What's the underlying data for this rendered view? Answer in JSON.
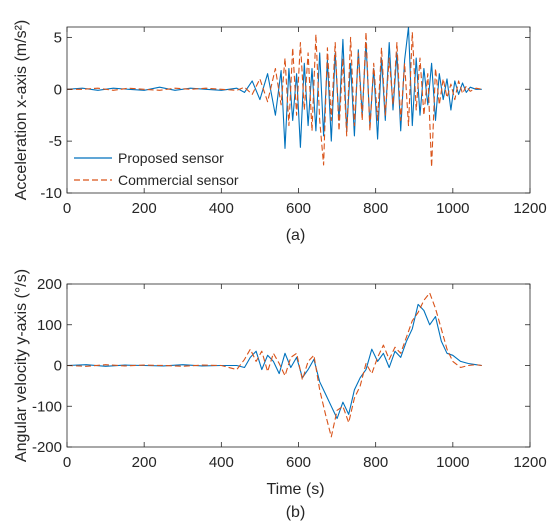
{
  "figure": {
    "series_styles": [
      {
        "name": "Proposed sensor",
        "color": "#0072BD",
        "dash": "solid"
      },
      {
        "name": "Commercial sensor",
        "color": "#D95319",
        "dash": "dashed"
      }
    ]
  },
  "chart_data": [
    {
      "type": "line",
      "panel_label": "(a)",
      "title": "",
      "xlabel": "",
      "ylabel": "Acceleration x-axis (m/s²)",
      "xlim": [
        0,
        1200
      ],
      "ylim": [
        -10,
        6
      ],
      "xticks": [
        0,
        200,
        400,
        600,
        800,
        1000,
        1200
      ],
      "yticks": [
        -10,
        -5,
        0,
        5
      ],
      "grid": false,
      "legend": {
        "placement": "bottom-left",
        "entries": [
          "Proposed sensor",
          "Commercial sensor"
        ]
      },
      "series": [
        {
          "name": "Proposed sensor",
          "color": "#0072BD",
          "x": [
            0,
            40,
            80,
            120,
            160,
            200,
            240,
            280,
            320,
            360,
            400,
            440,
            460,
            480,
            500,
            520,
            540,
            555,
            565,
            575,
            585,
            595,
            605,
            615,
            625,
            635,
            645,
            655,
            665,
            675,
            685,
            695,
            705,
            715,
            725,
            735,
            745,
            755,
            765,
            775,
            785,
            795,
            805,
            815,
            825,
            835,
            845,
            855,
            865,
            875,
            885,
            895,
            905,
            915,
            925,
            935,
            945,
            955,
            965,
            975,
            985,
            995,
            1005,
            1015,
            1025,
            1035,
            1045,
            1060,
            1075
          ],
          "y": [
            0,
            0.1,
            -0.1,
            0.1,
            0,
            -0.1,
            0.2,
            -0.1,
            0.1,
            0,
            -0.1,
            0.1,
            -0.3,
            0.8,
            -1.0,
            1.5,
            -2.5,
            1.8,
            -5.7,
            2.0,
            -3.0,
            1.5,
            -5.6,
            2.5,
            -3.5,
            2.0,
            -4.0,
            3.5,
            -4.5,
            2.8,
            -5.0,
            3.5,
            -3.0,
            4.8,
            -4.0,
            2.5,
            -4.5,
            3.8,
            -2.5,
            4.5,
            -3.5,
            2.0,
            -4.8,
            3.0,
            -3.0,
            4.5,
            -2.0,
            3.5,
            -4.0,
            2.8,
            6.0,
            -3.5,
            3.0,
            -2.5,
            2.0,
            -1.5,
            2.5,
            -3.0,
            1.5,
            -1.0,
            1.0,
            -2.0,
            0.8,
            -0.5,
            0.6,
            -0.3,
            0.2,
            0,
            0
          ]
        },
        {
          "name": "Commercial sensor",
          "color": "#D95319",
          "x": [
            0,
            40,
            80,
            120,
            160,
            200,
            240,
            280,
            320,
            360,
            400,
            440,
            460,
            480,
            500,
            520,
            540,
            555,
            565,
            575,
            585,
            595,
            605,
            615,
            625,
            635,
            645,
            655,
            665,
            675,
            685,
            695,
            705,
            715,
            725,
            735,
            745,
            755,
            765,
            775,
            785,
            795,
            805,
            815,
            825,
            835,
            845,
            855,
            865,
            875,
            885,
            895,
            905,
            915,
            925,
            935,
            945,
            955,
            965,
            975,
            985,
            995,
            1005,
            1015,
            1025,
            1035,
            1045,
            1060,
            1075
          ],
          "y": [
            0,
            0,
            0.1,
            -0.1,
            0.1,
            0,
            -0.1,
            0.1,
            0,
            0.1,
            0,
            -0.1,
            0.2,
            -0.5,
            1.0,
            -1.2,
            2.0,
            -1.5,
            3.0,
            -3.5,
            4.0,
            -2.5,
            4.5,
            -2.0,
            3.5,
            -4.0,
            5.3,
            -3.0,
            -7.3,
            4.0,
            -3.0,
            4.5,
            -4.0,
            3.0,
            -4.5,
            5.0,
            -3.5,
            3.5,
            -3.0,
            5.5,
            -4.0,
            2.5,
            -3.0,
            4.0,
            -2.5,
            3.0,
            -1.5,
            4.5,
            -3.0,
            2.5,
            -3.5,
            5.5,
            -2.0,
            3.0,
            -2.5,
            1.5,
            -7.5,
            2.0,
            -1.5,
            1.0,
            -0.8,
            0.5,
            -1.0,
            0.8,
            -0.4,
            0.3,
            -0.2,
            0.1,
            0
          ]
        }
      ]
    },
    {
      "type": "line",
      "panel_label": "(b)",
      "title": "",
      "xlabel": "Time (s)",
      "ylabel": "Angular velocity y-axis (°/s)",
      "xlim": [
        0,
        1200
      ],
      "ylim": [
        -200,
        200
      ],
      "xticks": [
        0,
        200,
        400,
        600,
        800,
        1000,
        1200
      ],
      "yticks": [
        -200,
        -100,
        0,
        100,
        200
      ],
      "grid": false,
      "series": [
        {
          "name": "Proposed sensor",
          "color": "#0072BD",
          "x": [
            0,
            50,
            100,
            150,
            200,
            250,
            300,
            350,
            400,
            440,
            460,
            475,
            490,
            505,
            520,
            535,
            550,
            565,
            580,
            595,
            610,
            625,
            640,
            655,
            670,
            685,
            700,
            715,
            730,
            745,
            760,
            775,
            790,
            805,
            820,
            835,
            850,
            865,
            880,
            895,
            910,
            925,
            940,
            955,
            970,
            985,
            1000,
            1020,
            1040,
            1060,
            1075
          ],
          "y": [
            0,
            2,
            -2,
            1,
            0,
            -1,
            2,
            -1,
            0,
            0,
            -5,
            20,
            35,
            -10,
            25,
            10,
            -20,
            30,
            -5,
            20,
            -30,
            -10,
            15,
            -40,
            -70,
            -100,
            -130,
            -90,
            -120,
            -60,
            -30,
            -10,
            40,
            10,
            30,
            -5,
            35,
            20,
            60,
            90,
            150,
            135,
            100,
            120,
            60,
            30,
            25,
            10,
            5,
            2,
            0
          ]
        },
        {
          "name": "Commercial sensor",
          "color": "#D95319",
          "x": [
            0,
            50,
            100,
            150,
            200,
            250,
            300,
            350,
            400,
            440,
            460,
            475,
            490,
            505,
            520,
            535,
            550,
            565,
            580,
            595,
            610,
            625,
            640,
            655,
            670,
            685,
            700,
            715,
            730,
            745,
            760,
            775,
            790,
            805,
            820,
            835,
            850,
            865,
            880,
            895,
            910,
            925,
            940,
            955,
            970,
            985,
            1000,
            1020,
            1040,
            1060,
            1075
          ],
          "y": [
            0,
            -2,
            2,
            -1,
            1,
            0,
            -2,
            1,
            0,
            -10,
            15,
            40,
            10,
            35,
            -15,
            30,
            5,
            -25,
            20,
            30,
            -35,
            10,
            25,
            -60,
            -120,
            -175,
            -110,
            -100,
            -140,
            -80,
            -50,
            5,
            -20,
            20,
            50,
            15,
            45,
            30,
            70,
            110,
            130,
            160,
            178,
            140,
            90,
            40,
            10,
            -5,
            0,
            2,
            0
          ]
        }
      ]
    }
  ]
}
